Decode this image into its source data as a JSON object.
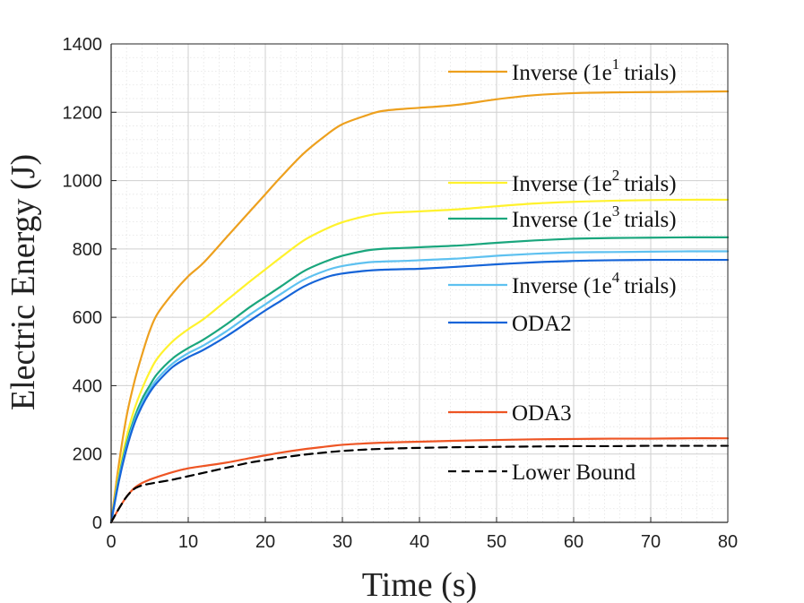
{
  "chart_data": {
    "type": "line",
    "title": "",
    "xlabel": "Time (s)",
    "ylabel": "Electric Energy  (J)",
    "xlim": [
      0,
      80
    ],
    "ylim": [
      0,
      1400
    ],
    "xticks": [
      0,
      10,
      20,
      30,
      40,
      50,
      60,
      70,
      80
    ],
    "yticks": [
      0,
      200,
      400,
      600,
      800,
      1000,
      1200,
      1400
    ],
    "xtick_labels": [
      "0",
      "10",
      "20",
      "30",
      "40",
      "50",
      "60",
      "70",
      "80"
    ],
    "ytick_labels": [
      "0",
      "200",
      "400",
      "600",
      "800",
      "1000",
      "1200",
      "1400"
    ],
    "grid": true,
    "legend_position": "right-inside",
    "series": [
      {
        "name": "Inverse (1e1 trials)",
        "label_main": "Inverse (1e",
        "label_sup": "1",
        "label_tail": "trials)",
        "color": "#EDA01E",
        "dash": "solid",
        "x": [
          0,
          1,
          2,
          3,
          4,
          5,
          6,
          8,
          10,
          12,
          15,
          18,
          20,
          22,
          25,
          28,
          30,
          33,
          35,
          38,
          40,
          45,
          50,
          55,
          60,
          65,
          70,
          75,
          80
        ],
        "y": [
          0,
          170,
          310,
          410,
          490,
          560,
          610,
          670,
          720,
          760,
          835,
          910,
          960,
          1010,
          1080,
          1135,
          1165,
          1190,
          1203,
          1210,
          1213,
          1222,
          1238,
          1250,
          1256,
          1258,
          1259,
          1260,
          1261
        ]
      },
      {
        "name": "Inverse (1e2 trials)",
        "label_main": "Inverse (1e",
        "label_sup": "2",
        "label_tail": "trials)",
        "color": "#FFF22D",
        "dash": "solid",
        "x": [
          0,
          1,
          2,
          3,
          4,
          5,
          6,
          8,
          10,
          12,
          15,
          18,
          20,
          22,
          25,
          28,
          30,
          33,
          35,
          38,
          40,
          45,
          50,
          55,
          60,
          65,
          70,
          75,
          80
        ],
        "y": [
          0,
          140,
          250,
          330,
          390,
          440,
          480,
          530,
          565,
          595,
          650,
          705,
          740,
          775,
          825,
          860,
          878,
          896,
          904,
          908,
          910,
          916,
          925,
          933,
          938,
          941,
          943,
          944,
          944
        ]
      },
      {
        "name": "Inverse (1e3 trials)",
        "label_main": "Inverse (1e",
        "label_sup": "3",
        "label_tail": "trials)",
        "color": "#1AA67D",
        "dash": "solid",
        "x": [
          0,
          1,
          2,
          3,
          4,
          5,
          6,
          8,
          10,
          12,
          15,
          18,
          20,
          22,
          25,
          28,
          30,
          33,
          35,
          38,
          40,
          45,
          50,
          55,
          60,
          65,
          70,
          75,
          80
        ],
        "y": [
          0,
          130,
          230,
          305,
          360,
          400,
          435,
          480,
          510,
          535,
          580,
          630,
          660,
          690,
          735,
          765,
          780,
          795,
          800,
          803,
          805,
          810,
          818,
          825,
          830,
          832,
          833,
          834,
          834
        ]
      },
      {
        "name": "Inverse (1e4 trials)",
        "label_main": "Inverse (1e",
        "label_sup": "4",
        "label_tail": "trials)",
        "color": "#5EC1F0",
        "dash": "solid",
        "x": [
          0,
          1,
          2,
          3,
          4,
          5,
          6,
          8,
          10,
          12,
          15,
          18,
          20,
          22,
          25,
          28,
          30,
          33,
          35,
          38,
          40,
          45,
          50,
          55,
          60,
          65,
          70,
          75,
          80
        ],
        "y": [
          0,
          125,
          222,
          295,
          348,
          388,
          420,
          465,
          495,
          518,
          560,
          608,
          638,
          668,
          710,
          738,
          750,
          760,
          763,
          765,
          767,
          772,
          780,
          786,
          790,
          791,
          792,
          793,
          793
        ]
      },
      {
        "name": "ODA2",
        "label_main": "ODA2",
        "label_sup": "",
        "label_tail": "",
        "color": "#1564D8",
        "dash": "solid",
        "x": [
          0,
          1,
          2,
          3,
          4,
          5,
          6,
          8,
          10,
          12,
          15,
          18,
          20,
          22,
          25,
          28,
          30,
          33,
          35,
          38,
          40,
          45,
          50,
          55,
          60,
          65,
          70,
          75,
          80
        ],
        "y": [
          0,
          120,
          215,
          288,
          340,
          380,
          410,
          455,
          483,
          505,
          545,
          590,
          620,
          648,
          690,
          718,
          728,
          736,
          739,
          741,
          742,
          748,
          755,
          761,
          765,
          767,
          768,
          768,
          768
        ]
      },
      {
        "name": "ODA3",
        "label_main": "ODA3",
        "label_sup": "",
        "label_tail": "",
        "color": "#EE5524",
        "dash": "solid",
        "x": [
          0,
          1,
          2,
          3,
          4,
          5,
          6,
          8,
          10,
          12,
          15,
          18,
          20,
          22,
          25,
          28,
          30,
          33,
          35,
          38,
          40,
          45,
          50,
          55,
          60,
          65,
          70,
          75,
          80
        ],
        "y": [
          0,
          40,
          75,
          100,
          115,
          125,
          133,
          147,
          158,
          165,
          175,
          188,
          196,
          204,
          214,
          222,
          227,
          231,
          233,
          235,
          236,
          239,
          241,
          243,
          244,
          245,
          245,
          246,
          246
        ]
      },
      {
        "name": "Lower Bound",
        "label_main": "Lower Bound",
        "label_sup": "",
        "label_tail": "",
        "color": "#000000",
        "dash": "dashed",
        "x": [
          0,
          1,
          2,
          3,
          4,
          5,
          6,
          8,
          10,
          12,
          15,
          18,
          20,
          22,
          25,
          28,
          30,
          33,
          35,
          38,
          40,
          45,
          50,
          55,
          60,
          65,
          70,
          75,
          80
        ],
        "y": [
          0,
          40,
          75,
          98,
          108,
          113,
          117,
          125,
          135,
          145,
          160,
          175,
          182,
          189,
          198,
          205,
          209,
          213,
          215,
          217,
          218,
          220,
          221,
          222,
          223,
          223,
          224,
          224,
          224
        ]
      }
    ]
  }
}
